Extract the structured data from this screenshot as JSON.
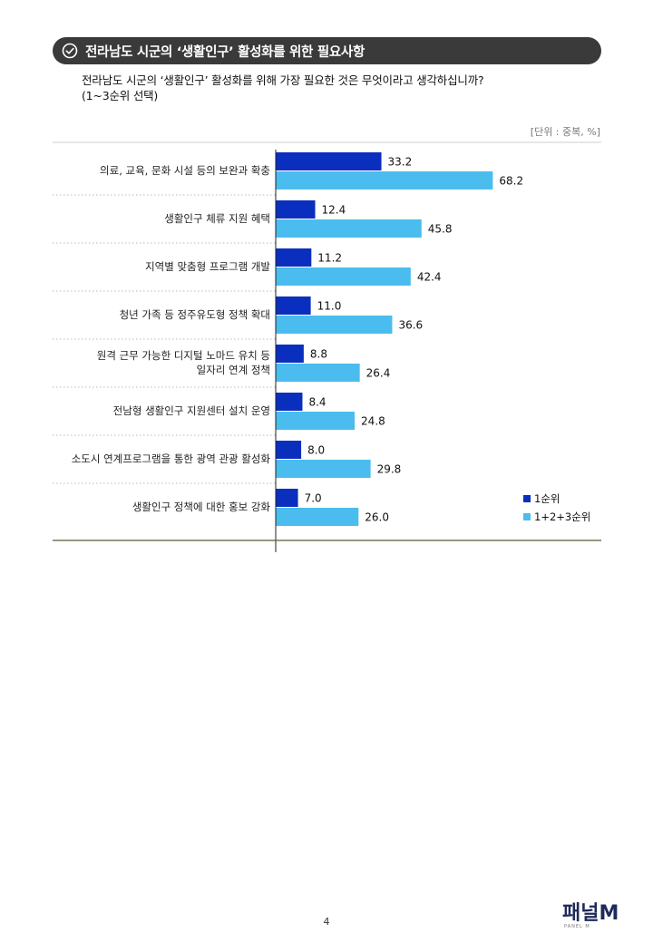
{
  "header": {
    "title": "전라남도 시군의 ‘생활인구’ 활성화를 위한 필요사항"
  },
  "question": {
    "line1": "전라남도 시군의 ‘생활인구’ 활성화를 위해 가장 필요한 것은 무엇이라고 생각하십니까?",
    "line2": "(1~3순위 선택)"
  },
  "unit_label": "[단위 : 중복, %]",
  "colors": {
    "first": "#0a2fbf",
    "total": "#4bbcee",
    "title_bg": "#3a3a3a"
  },
  "chart_data": {
    "type": "bar",
    "orientation": "horizontal",
    "categories": [
      [
        "의료, 교육, 문화 시설 등의 보완과 확충"
      ],
      [
        "생활인구 체류 지원 혜택"
      ],
      [
        "지역별 맞춤형 프로그램 개발"
      ],
      [
        "청년 가족 등 정주유도형 정책 확대"
      ],
      [
        "원격 근무 가능한 디지털 노마드 유치 등",
        "일자리 연계 정책"
      ],
      [
        "전남형 생활인구 지원센터 설치 운영"
      ],
      [
        "소도시 연계프로그램을 통한 광역 관광 활성화"
      ],
      [
        "생활인구 정책에 대한 홍보 강화"
      ]
    ],
    "series": [
      {
        "name": "1순위",
        "values": [
          33.2,
          12.4,
          11.2,
          11.0,
          8.8,
          8.4,
          8.0,
          7.0
        ]
      },
      {
        "name": "1+2+3순위",
        "values": [
          68.2,
          45.8,
          42.4,
          36.6,
          26.4,
          24.8,
          29.8,
          26.0
        ]
      }
    ],
    "xlim": [
      0,
      100
    ],
    "legend_position": "bottom-right",
    "grid": false
  },
  "footer": {
    "page": "4",
    "logo_text": "패널M",
    "logo_sub": "PANEL M"
  }
}
